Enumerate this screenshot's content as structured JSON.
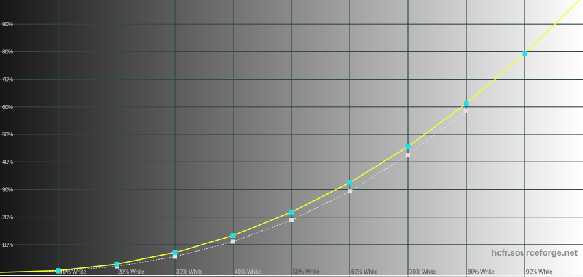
{
  "chart_data": {
    "type": "line",
    "title": "",
    "xlabel": "",
    "ylabel": "",
    "xlim": [
      0,
      100
    ],
    "ylim": [
      0,
      100
    ],
    "grid": true,
    "x_tick_labels": [
      "10% White",
      "20% White",
      "30% White",
      "40% White",
      "50% White",
      "60% White",
      "70% White",
      "80% White",
      "90% White"
    ],
    "y_tick_labels": [
      "10%",
      "20%",
      "30%",
      "40%",
      "50%",
      "60%",
      "70%",
      "80%",
      "90%"
    ],
    "x_ticks": [
      10,
      20,
      30,
      40,
      50,
      60,
      70,
      80,
      90
    ],
    "y_ticks": [
      10,
      20,
      30,
      40,
      50,
      60,
      70,
      80,
      90
    ],
    "series": [
      {
        "style": "measured",
        "color": "#f0ff30",
        "marker_color": "#20e0e8",
        "x": [
          0,
          10,
          20,
          30,
          40,
          50,
          60,
          70,
          80,
          90,
          100
        ],
        "values": [
          0,
          0.6,
          2.9,
          7.1,
          13.3,
          21.8,
          32.5,
          45.6,
          61.2,
          79.3,
          100
        ]
      },
      {
        "style": "reference",
        "color": "#e8e8e8",
        "marker_color": "#e0e0e0",
        "x": [
          0,
          10,
          20,
          30,
          40,
          50,
          60,
          70,
          80
        ],
        "values": [
          0,
          0.4,
          2.1,
          5.6,
          11.1,
          18.9,
          29.3,
          42.5,
          58.5
        ]
      }
    ],
    "background": "horizontal gradient black to white",
    "grid_color": "#2c4a48"
  },
  "watermark": "hcfr.sourceforge.net"
}
